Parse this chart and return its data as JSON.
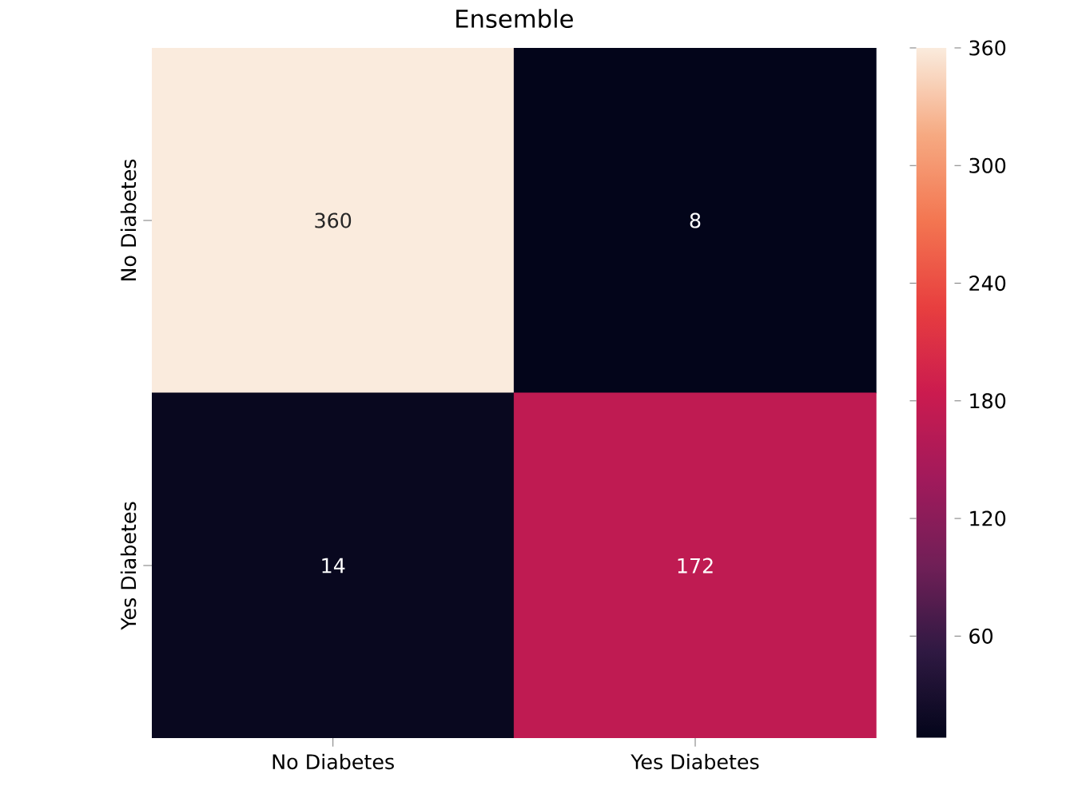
{
  "chart_data": {
    "type": "heatmap",
    "title": "Ensemble",
    "categories": [
      "No Diabetes",
      "Yes Diabetes"
    ],
    "y_categories": [
      "No Diabetes",
      "Yes Diabetes"
    ],
    "cells": [
      [
        360,
        8
      ],
      [
        14,
        172
      ]
    ],
    "data_labels": true,
    "clim": [
      8,
      360
    ],
    "cticks": [
      60,
      120,
      180,
      240,
      300,
      360
    ]
  }
}
